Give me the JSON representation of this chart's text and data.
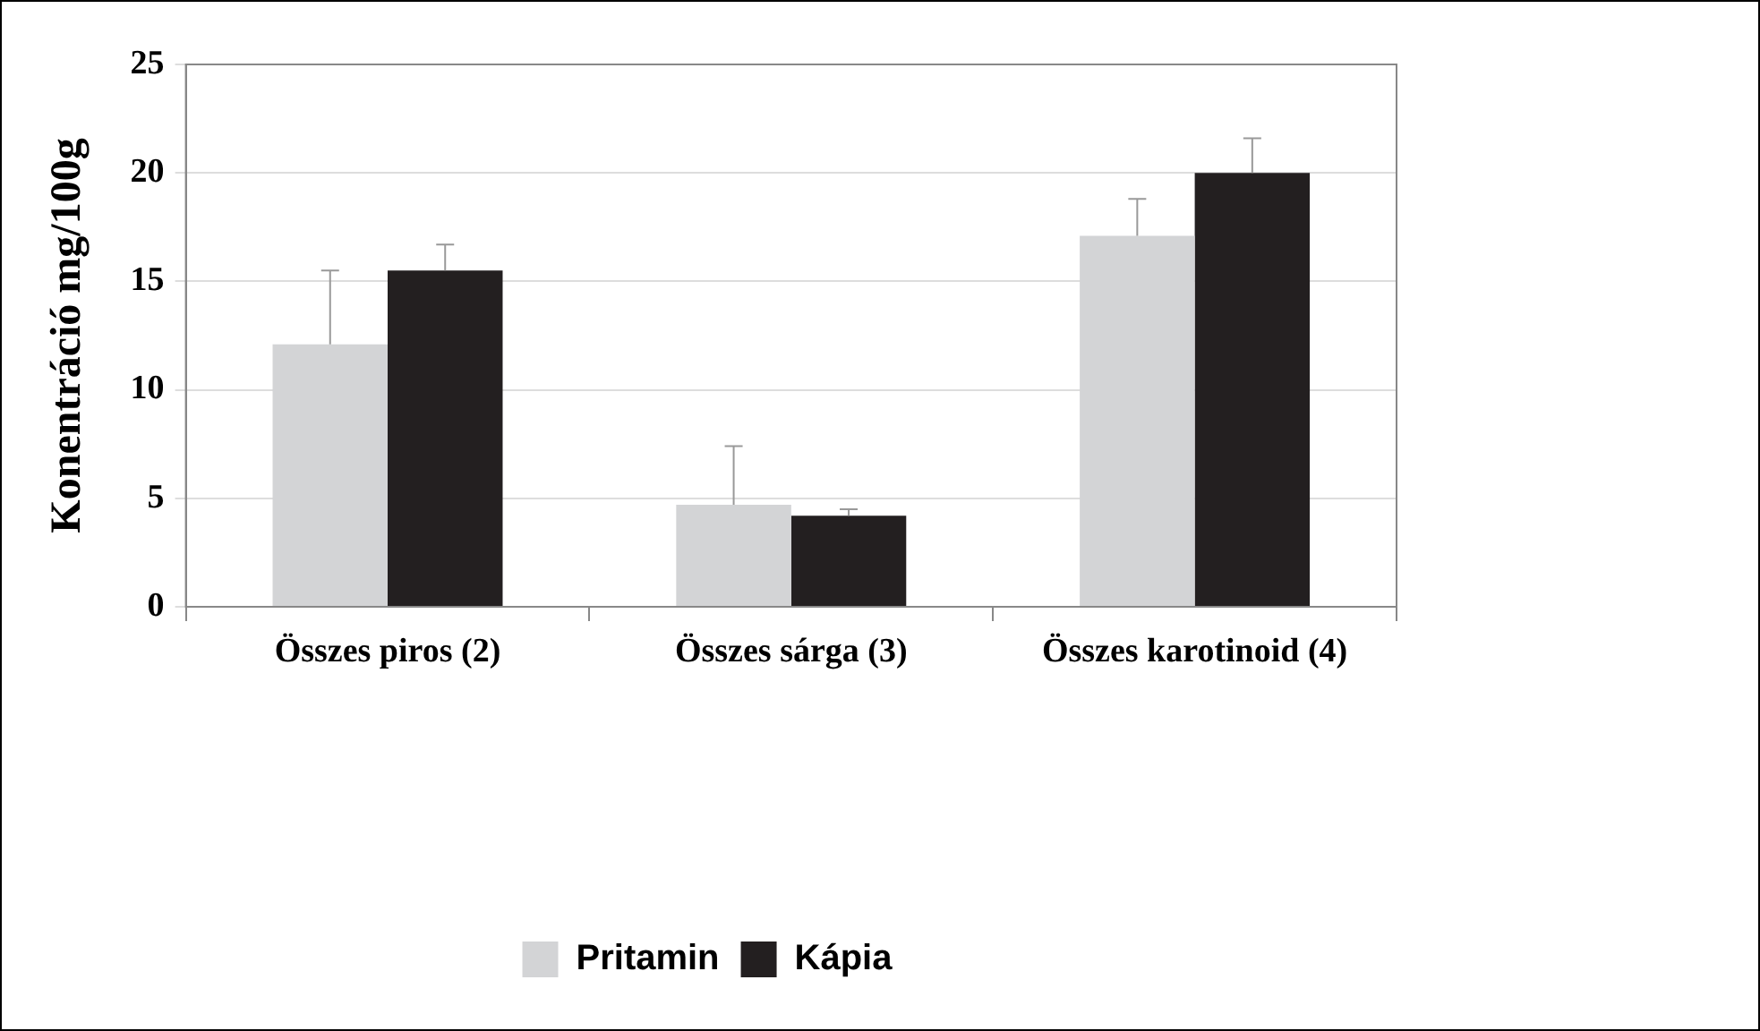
{
  "chart_data": {
    "type": "bar",
    "ylabel": "Konentráció mg/100g",
    "categories": [
      "Összes piros (2)",
      "Összes sárga (3)",
      "Összes karotinoid (4)"
    ],
    "series": [
      {
        "name": "Pritamin",
        "color": "#d3d4d6",
        "values": [
          12.1,
          4.7,
          17.1
        ],
        "errors": [
          [
            12.1,
            15.5
          ],
          [
            4.7,
            7.4
          ],
          [
            17.1,
            18.8
          ]
        ]
      },
      {
        "name": "Kápia",
        "color": "#231f20",
        "values": [
          15.5,
          4.2,
          20.0
        ],
        "errors": [
          [
            15.5,
            16.7
          ],
          [
            4.2,
            4.5
          ],
          [
            20.0,
            21.6
          ]
        ]
      }
    ],
    "ylim": [
      0,
      25
    ],
    "yticks": [
      0,
      5,
      10,
      15,
      20,
      25
    ],
    "grid": "y",
    "legend": "bottom"
  }
}
